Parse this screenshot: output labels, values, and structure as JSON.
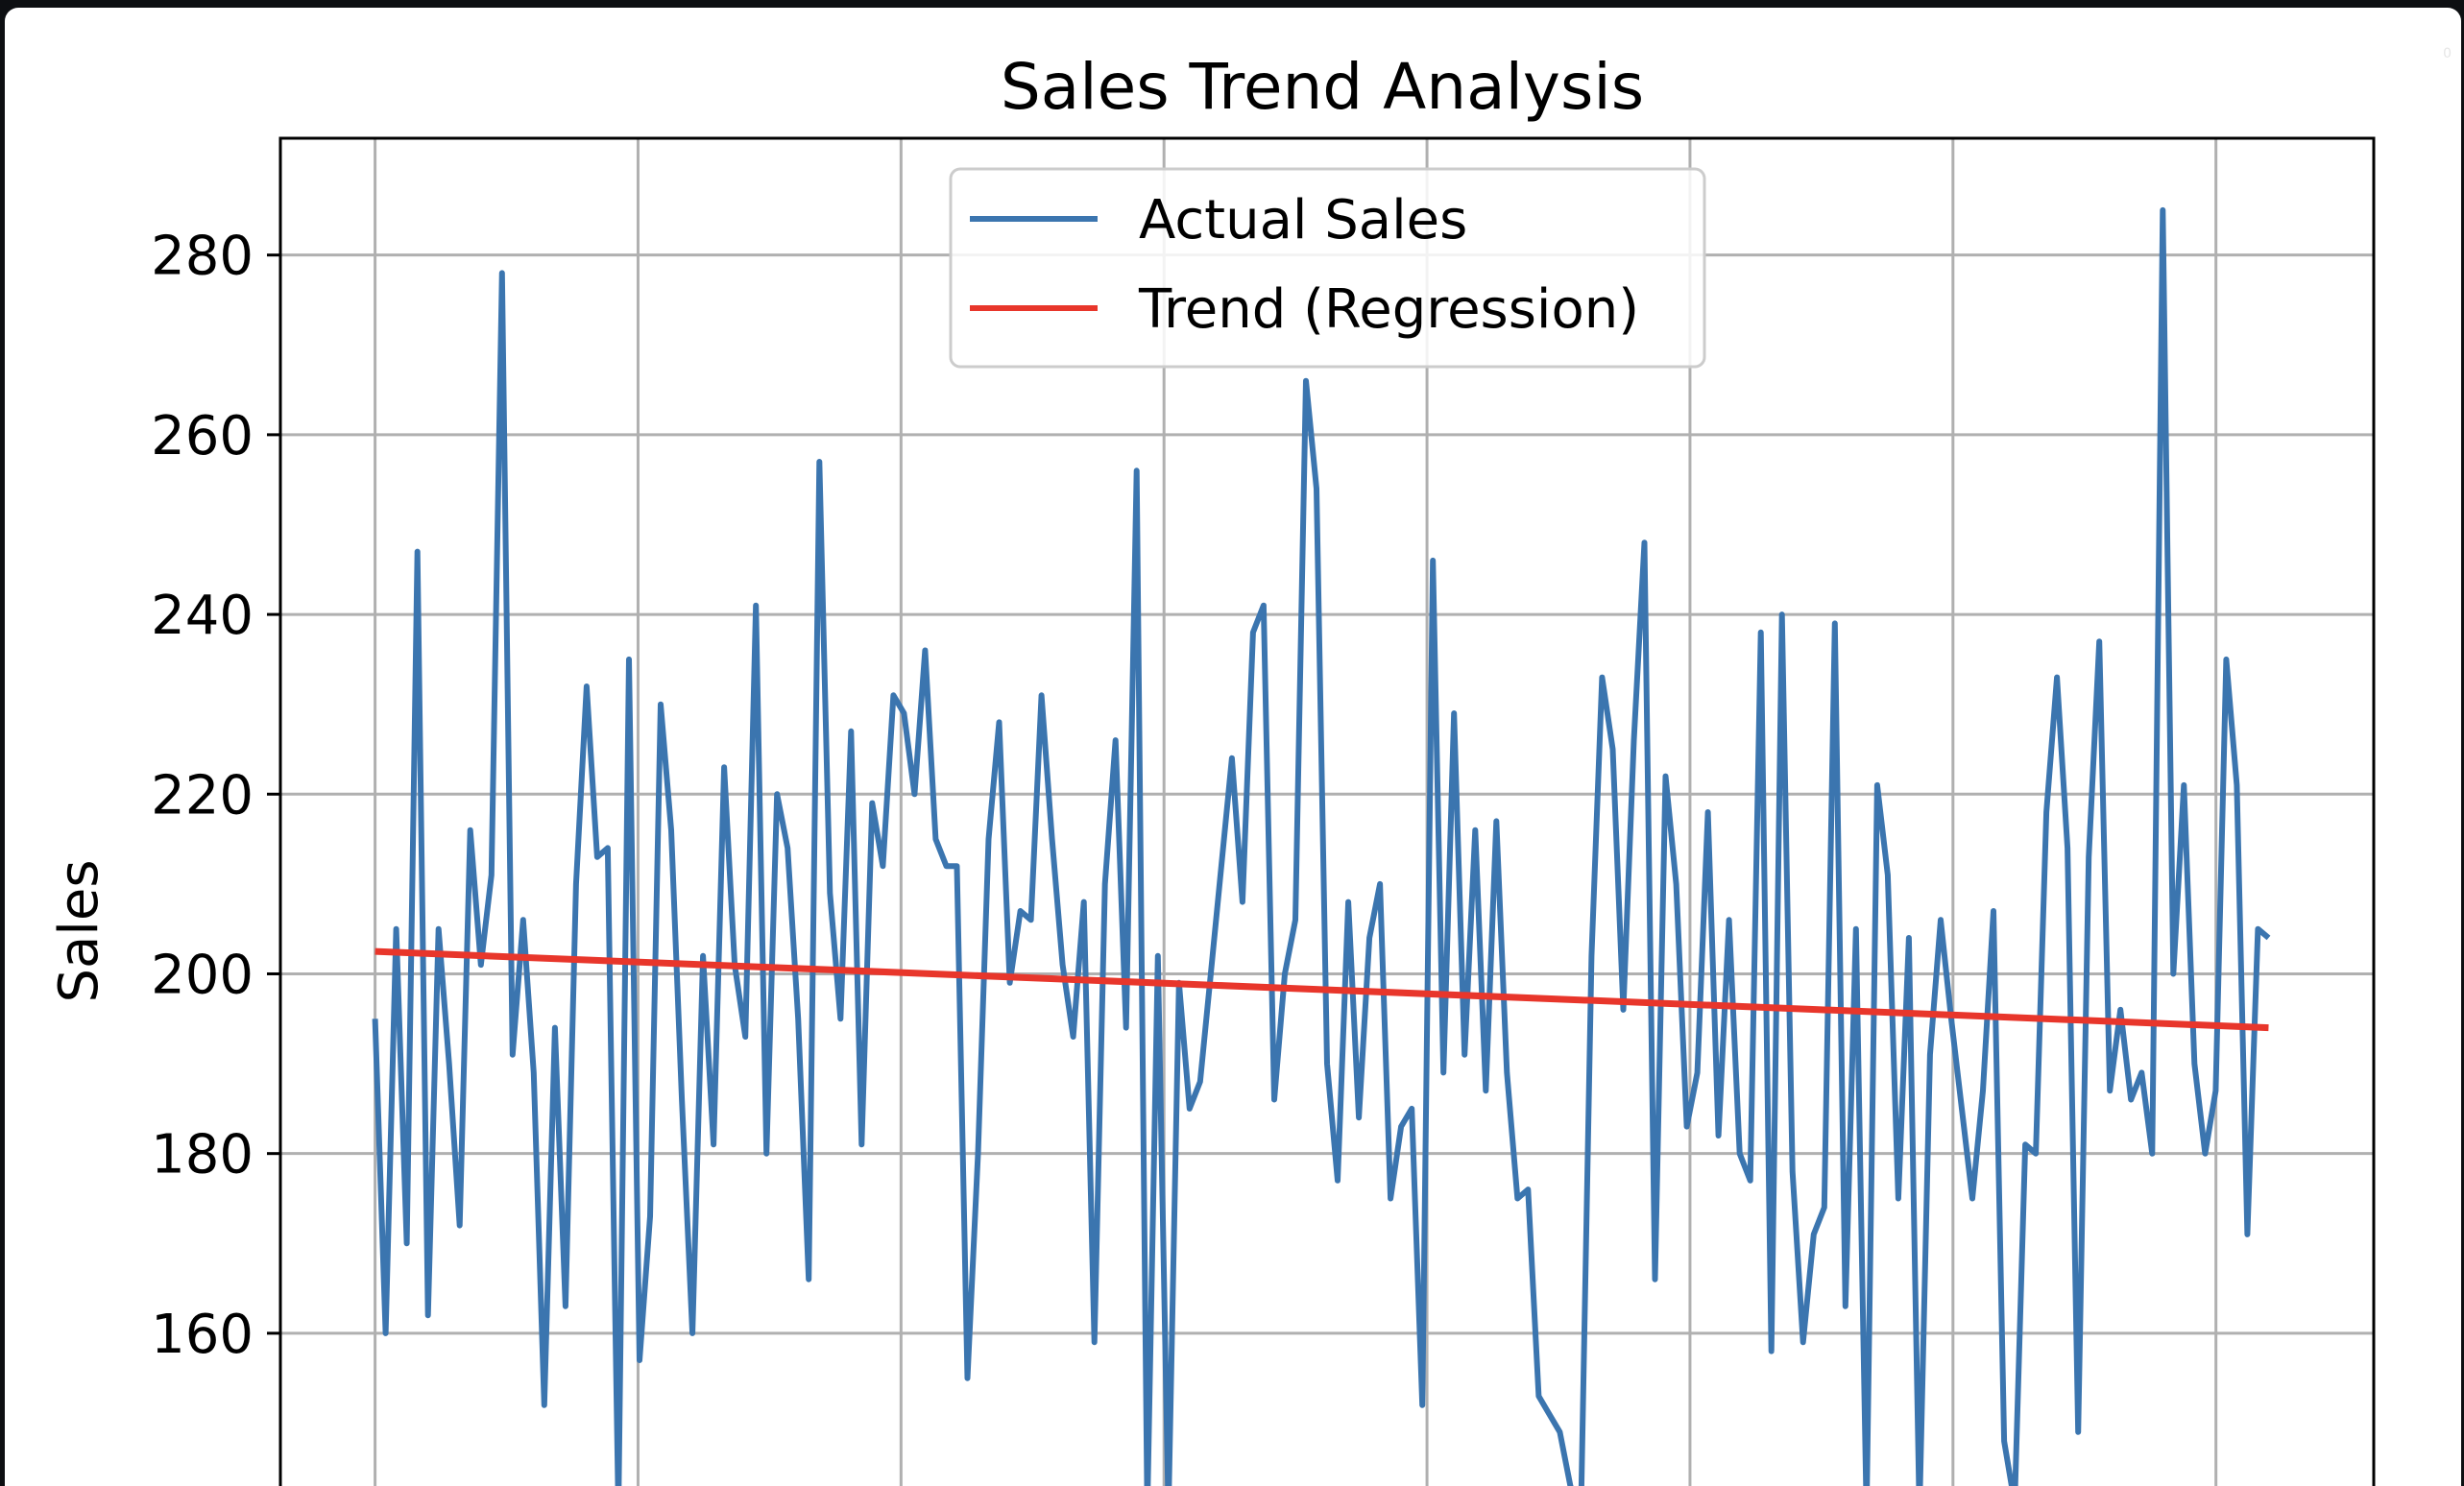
{
  "window": {
    "corner_mark": "0"
  },
  "chart_data": {
    "type": "line",
    "title": "Sales Trend Analysis",
    "xlabel": "",
    "ylabel": "Sales",
    "ylim": [
      143,
      293
    ],
    "yticks": [
      160,
      180,
      200,
      220,
      240,
      260,
      280
    ],
    "grid": true,
    "legend_placement": "top-center",
    "series": [
      {
        "name": "Actual Sales",
        "color": "#3b75af",
        "values": [
          195,
          160,
          205,
          170,
          247,
          162,
          205,
          190,
          172,
          216,
          201,
          211,
          278,
          191,
          206,
          189,
          152,
          194,
          163,
          210,
          232,
          213,
          214,
          140,
          235,
          157,
          173,
          230,
          216,
          186,
          160,
          202,
          181,
          223,
          201,
          193,
          241,
          180,
          220,
          214,
          195,
          166,
          257,
          209,
          195,
          227,
          181,
          219,
          212,
          231,
          229,
          220,
          236,
          215,
          212,
          212,
          155,
          180,
          215,
          228,
          199,
          207,
          206,
          231,
          215,
          201,
          193,
          208,
          159,
          210,
          226,
          194,
          256,
          140,
          202,
          140,
          199,
          185,
          188,
          200,
          212,
          224,
          208,
          238,
          241,
          186,
          200,
          206,
          266,
          254,
          190,
          177,
          208,
          184,
          204,
          210,
          175,
          183,
          185,
          152,
          246,
          189,
          229,
          191,
          216,
          187,
          217,
          189,
          175,
          176,
          153,
          151,
          149,
          143,
          140,
          202,
          233,
          225,
          196,
          226,
          248,
          166,
          222,
          210,
          183,
          189,
          218,
          182,
          206,
          180,
          177,
          238,
          158,
          240,
          178,
          159,
          171,
          174,
          239,
          163,
          205,
          140,
          221,
          211,
          175,
          204,
          140,
          191,
          206,
          195,
          185,
          175,
          187,
          207,
          148,
          141,
          181,
          180,
          218,
          233,
          214,
          149,
          213,
          237,
          187,
          196,
          186,
          189,
          180,
          285,
          200,
          221,
          190,
          180,
          187,
          235,
          221,
          171,
          205,
          204
        ],
        "x_start": 0,
        "x_end": 180
      },
      {
        "name": "Trend (Regression)",
        "color": "#e8362b",
        "values": [
          202.5,
          194.0
        ]
      }
    ]
  }
}
